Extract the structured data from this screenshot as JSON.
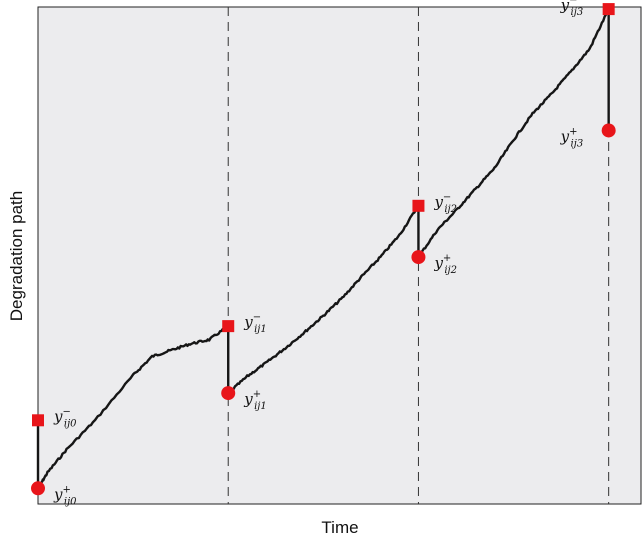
{
  "chart_data": {
    "type": "line",
    "xlabel": "Time",
    "ylabel": "Degradation path",
    "grid": false,
    "legend": "none",
    "xlim": [
      0,
      3.17
    ],
    "ylim": [
      -0.15,
      4.6
    ],
    "maintenance_times": [
      1,
      2,
      3
    ],
    "series": [
      {
        "x": [
          0,
          0.05,
          0.15,
          0.3,
          0.5,
          0.6,
          0.7,
          0.8,
          0.9,
          1.0
        ],
        "y": [
          0,
          0.15,
          0.37,
          0.65,
          1.08,
          1.26,
          1.32,
          1.38,
          1.42,
          1.55
        ]
      },
      {
        "x": [
          1.0,
          1.1,
          1.2,
          1.3,
          1.4,
          1.5,
          1.6,
          1.7,
          1.8,
          1.9,
          2.0
        ],
        "y": [
          0.91,
          1.07,
          1.2,
          1.34,
          1.49,
          1.65,
          1.82,
          2.02,
          2.21,
          2.42,
          2.7
        ]
      },
      {
        "x": [
          2.0,
          2.1,
          2.2,
          2.3,
          2.4,
          2.5,
          2.6,
          2.7,
          2.8,
          2.9,
          3.0
        ],
        "y": [
          2.21,
          2.47,
          2.66,
          2.86,
          3.06,
          3.33,
          3.58,
          3.77,
          3.98,
          4.2,
          4.58
        ]
      }
    ],
    "jumps": [
      {
        "x": 0,
        "y_minus": 0.65,
        "y_plus": 0
      },
      {
        "x": 1,
        "y_minus": 1.55,
        "y_plus": 0.91
      },
      {
        "x": 2,
        "y_minus": 2.7,
        "y_plus": 2.21
      },
      {
        "x": 3,
        "y_minus": 4.58,
        "y_plus": 3.42
      }
    ],
    "point_labels": [
      {
        "name": "y",
        "superscript": "−",
        "subscript": "ij0",
        "at": "y_minus",
        "index": 0,
        "side": "right"
      },
      {
        "name": "y",
        "superscript": "+",
        "subscript": "ij0",
        "at": "y_plus",
        "index": 0,
        "side": "right"
      },
      {
        "name": "y",
        "superscript": "−",
        "subscript": "ij1",
        "at": "y_minus",
        "index": 1,
        "side": "right"
      },
      {
        "name": "y",
        "superscript": "+",
        "subscript": "ij1",
        "at": "y_plus",
        "index": 1,
        "side": "right"
      },
      {
        "name": "y",
        "superscript": "−",
        "subscript": "ij2",
        "at": "y_minus",
        "index": 2,
        "side": "right"
      },
      {
        "name": "y",
        "superscript": "+",
        "subscript": "ij2",
        "at": "y_plus",
        "index": 2,
        "side": "right"
      },
      {
        "name": "y",
        "superscript": "−",
        "subscript": "ij3",
        "at": "y_minus",
        "index": 3,
        "side": "left"
      },
      {
        "name": "y",
        "superscript": "+",
        "subscript": "ij3",
        "at": "y_plus",
        "index": 3,
        "side": "left"
      }
    ],
    "colors": {
      "plot_background": "#ececee",
      "path": "#161616",
      "marker": "#e8151a",
      "dashed_line": "#333333"
    }
  }
}
